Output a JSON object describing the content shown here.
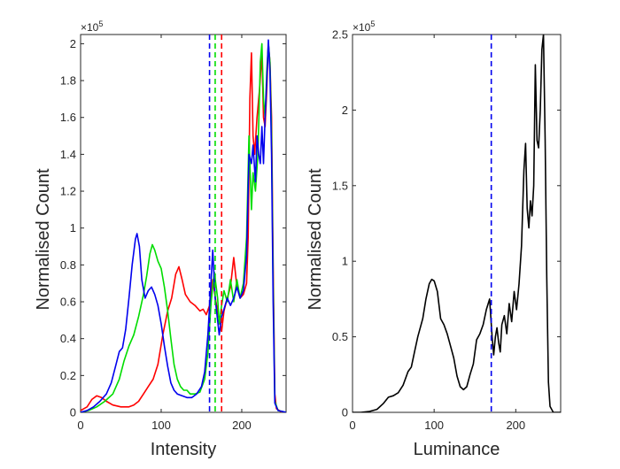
{
  "chart_data": [
    {
      "type": "line",
      "xlabel": "Intensity",
      "ylabel": "Normalised Count",
      "y_exponent_label": "×10",
      "y_exponent_power": "5",
      "xlim": [
        0,
        255
      ],
      "ylim": [
        0,
        2.05
      ],
      "xticks": [
        0,
        100,
        200
      ],
      "xtick_labels": [
        "0",
        "100",
        "200"
      ],
      "yticks": [
        0,
        0.2,
        0.4,
        0.6,
        0.8,
        1,
        1.2,
        1.4,
        1.6,
        1.8,
        2
      ],
      "ytick_labels": [
        "0",
        "0.2",
        "0.4",
        "0.6",
        "0.8",
        "1",
        "1.2",
        "1.4",
        "1.6",
        "1.8",
        "2"
      ],
      "grid": false,
      "series": [
        {
          "color": "#ff0000",
          "points": [
            [
              0,
              0.01
            ],
            [
              8,
              0.03
            ],
            [
              14,
              0.07
            ],
            [
              20,
              0.09
            ],
            [
              26,
              0.08
            ],
            [
              32,
              0.06
            ],
            [
              40,
              0.04
            ],
            [
              50,
              0.03
            ],
            [
              60,
              0.03
            ],
            [
              66,
              0.04
            ],
            [
              72,
              0.06
            ],
            [
              78,
              0.1
            ],
            [
              84,
              0.14
            ],
            [
              90,
              0.18
            ],
            [
              96,
              0.26
            ],
            [
              102,
              0.42
            ],
            [
              108,
              0.55
            ],
            [
              113,
              0.62
            ],
            [
              118,
              0.75
            ],
            [
              122,
              0.79
            ],
            [
              126,
              0.72
            ],
            [
              130,
              0.64
            ],
            [
              136,
              0.6
            ],
            [
              142,
              0.58
            ],
            [
              148,
              0.55
            ],
            [
              152,
              0.56
            ],
            [
              156,
              0.53
            ],
            [
              160,
              0.58
            ],
            [
              164,
              0.72
            ],
            [
              168,
              0.6
            ],
            [
              172,
              0.5
            ],
            [
              175,
              0.44
            ],
            [
              178,
              0.55
            ],
            [
              182,
              0.62
            ],
            [
              186,
              0.68
            ],
            [
              190,
              0.84
            ],
            [
              194,
              0.68
            ],
            [
              198,
              0.62
            ],
            [
              202,
              0.64
            ],
            [
              206,
              0.7
            ],
            [
              208,
              0.95
            ],
            [
              210,
              1.7
            ],
            [
              212,
              1.95
            ],
            [
              214,
              1.5
            ],
            [
              216,
              1.4
            ],
            [
              219,
              1.6
            ],
            [
              222,
              1.75
            ],
            [
              225,
              1.95
            ],
            [
              227,
              1.6
            ],
            [
              229,
              1.55
            ],
            [
              231,
              1.75
            ],
            [
              233,
              2.0
            ],
            [
              235,
              1.9
            ],
            [
              237,
              1.6
            ],
            [
              239,
              0.8
            ],
            [
              241,
              0.1
            ],
            [
              243,
              0.02
            ],
            [
              250,
              0.0
            ],
            [
              255,
              0.0
            ]
          ]
        },
        {
          "color": "#00dd00",
          "points": [
            [
              0,
              0.0
            ],
            [
              10,
              0.01
            ],
            [
              20,
              0.03
            ],
            [
              30,
              0.06
            ],
            [
              40,
              0.1
            ],
            [
              48,
              0.18
            ],
            [
              54,
              0.28
            ],
            [
              60,
              0.36
            ],
            [
              66,
              0.42
            ],
            [
              72,
              0.52
            ],
            [
              78,
              0.64
            ],
            [
              82,
              0.74
            ],
            [
              86,
              0.86
            ],
            [
              89,
              0.91
            ],
            [
              92,
              0.88
            ],
            [
              96,
              0.82
            ],
            [
              100,
              0.78
            ],
            [
              104,
              0.68
            ],
            [
              108,
              0.55
            ],
            [
              112,
              0.4
            ],
            [
              116,
              0.26
            ],
            [
              120,
              0.18
            ],
            [
              124,
              0.14
            ],
            [
              128,
              0.12
            ],
            [
              132,
              0.12
            ],
            [
              136,
              0.1
            ],
            [
              142,
              0.1
            ],
            [
              148,
              0.11
            ],
            [
              154,
              0.18
            ],
            [
              158,
              0.32
            ],
            [
              162,
              0.6
            ],
            [
              166,
              0.76
            ],
            [
              170,
              0.62
            ],
            [
              172,
              0.48
            ],
            [
              175,
              0.58
            ],
            [
              178,
              0.66
            ],
            [
              182,
              0.6
            ],
            [
              186,
              0.72
            ],
            [
              190,
              0.6
            ],
            [
              194,
              0.72
            ],
            [
              198,
              0.62
            ],
            [
              202,
              0.7
            ],
            [
              206,
              0.95
            ],
            [
              209,
              1.5
            ],
            [
              212,
              1.1
            ],
            [
              214,
              1.3
            ],
            [
              217,
              1.2
            ],
            [
              220,
              1.4
            ],
            [
              223,
              1.9
            ],
            [
              225,
              2.0
            ],
            [
              227,
              1.7
            ],
            [
              229,
              1.6
            ],
            [
              231,
              1.85
            ],
            [
              233,
              2.0
            ],
            [
              235,
              1.9
            ],
            [
              237,
              1.5
            ],
            [
              239,
              0.7
            ],
            [
              241,
              0.06
            ],
            [
              245,
              0.01
            ],
            [
              255,
              0.0
            ]
          ]
        },
        {
          "color": "#0000ee",
          "points": [
            [
              0,
              0.0
            ],
            [
              8,
              0.01
            ],
            [
              16,
              0.03
            ],
            [
              24,
              0.06
            ],
            [
              32,
              0.1
            ],
            [
              38,
              0.16
            ],
            [
              44,
              0.26
            ],
            [
              48,
              0.33
            ],
            [
              52,
              0.35
            ],
            [
              56,
              0.45
            ],
            [
              60,
              0.62
            ],
            [
              64,
              0.8
            ],
            [
              68,
              0.94
            ],
            [
              70,
              0.97
            ],
            [
              73,
              0.9
            ],
            [
              76,
              0.72
            ],
            [
              80,
              0.62
            ],
            [
              84,
              0.66
            ],
            [
              88,
              0.68
            ],
            [
              92,
              0.64
            ],
            [
              96,
              0.58
            ],
            [
              100,
              0.48
            ],
            [
              104,
              0.36
            ],
            [
              108,
              0.25
            ],
            [
              112,
              0.16
            ],
            [
              116,
              0.12
            ],
            [
              120,
              0.1
            ],
            [
              126,
              0.09
            ],
            [
              132,
              0.08
            ],
            [
              138,
              0.08
            ],
            [
              144,
              0.1
            ],
            [
              150,
              0.14
            ],
            [
              154,
              0.22
            ],
            [
              158,
              0.42
            ],
            [
              162,
              0.72
            ],
            [
              164,
              0.88
            ],
            [
              167,
              0.62
            ],
            [
              170,
              0.5
            ],
            [
              172,
              0.42
            ],
            [
              175,
              0.52
            ],
            [
              178,
              0.56
            ],
            [
              182,
              0.62
            ],
            [
              186,
              0.58
            ],
            [
              190,
              0.62
            ],
            [
              194,
              0.68
            ],
            [
              198,
              0.62
            ],
            [
              202,
              0.66
            ],
            [
              206,
              0.85
            ],
            [
              209,
              1.4
            ],
            [
              212,
              1.35
            ],
            [
              214,
              1.45
            ],
            [
              217,
              1.25
            ],
            [
              219,
              1.5
            ],
            [
              221,
              1.4
            ],
            [
              223,
              1.35
            ],
            [
              225,
              1.55
            ],
            [
              227,
              1.35
            ],
            [
              229,
              1.6
            ],
            [
              231,
              1.8
            ],
            [
              233,
              2.02
            ],
            [
              235,
              1.85
            ],
            [
              237,
              1.4
            ],
            [
              239,
              0.6
            ],
            [
              241,
              0.05
            ],
            [
              245,
              0.01
            ],
            [
              255,
              0.0
            ]
          ]
        }
      ],
      "vlines": [
        {
          "x": 160,
          "color": "#0000ee"
        },
        {
          "x": 167,
          "color": "#00dd00"
        },
        {
          "x": 175,
          "color": "#ff0000"
        }
      ]
    },
    {
      "type": "line",
      "xlabel": "Luminance",
      "ylabel": "Normalised Count",
      "y_exponent_label": "×10",
      "y_exponent_power": "5",
      "xlim": [
        0,
        255
      ],
      "ylim": [
        0,
        2.5
      ],
      "xticks": [
        0,
        100,
        200
      ],
      "xtick_labels": [
        "0",
        "100",
        "200"
      ],
      "yticks": [
        0,
        0.5,
        1,
        1.5,
        2,
        2.5
      ],
      "ytick_labels": [
        "0",
        "0.5",
        "1",
        "1.5",
        "2",
        "2.5"
      ],
      "grid": false,
      "series": [
        {
          "color": "#000000",
          "points": [
            [
              0,
              0.0
            ],
            [
              10,
              0.0
            ],
            [
              20,
              0.005
            ],
            [
              30,
              0.02
            ],
            [
              38,
              0.06
            ],
            [
              44,
              0.1
            ],
            [
              50,
              0.11
            ],
            [
              56,
              0.13
            ],
            [
              62,
              0.18
            ],
            [
              68,
              0.27
            ],
            [
              72,
              0.3
            ],
            [
              76,
              0.4
            ],
            [
              80,
              0.5
            ],
            [
              86,
              0.62
            ],
            [
              90,
              0.75
            ],
            [
              94,
              0.85
            ],
            [
              97,
              0.88
            ],
            [
              100,
              0.87
            ],
            [
              104,
              0.8
            ],
            [
              108,
              0.62
            ],
            [
              112,
              0.58
            ],
            [
              116,
              0.52
            ],
            [
              120,
              0.44
            ],
            [
              124,
              0.36
            ],
            [
              128,
              0.24
            ],
            [
              132,
              0.17
            ],
            [
              136,
              0.15
            ],
            [
              140,
              0.17
            ],
            [
              144,
              0.25
            ],
            [
              148,
              0.32
            ],
            [
              152,
              0.48
            ],
            [
              156,
              0.52
            ],
            [
              160,
              0.58
            ],
            [
              164,
              0.68
            ],
            [
              168,
              0.75
            ],
            [
              171,
              0.5
            ],
            [
              173,
              0.38
            ],
            [
              175,
              0.5
            ],
            [
              177,
              0.56
            ],
            [
              179,
              0.46
            ],
            [
              181,
              0.4
            ],
            [
              183,
              0.58
            ],
            [
              186,
              0.64
            ],
            [
              189,
              0.52
            ],
            [
              192,
              0.72
            ],
            [
              195,
              0.6
            ],
            [
              198,
              0.8
            ],
            [
              201,
              0.68
            ],
            [
              204,
              0.85
            ],
            [
              207,
              1.1
            ],
            [
              210,
              1.6
            ],
            [
              212,
              1.78
            ],
            [
              214,
              1.35
            ],
            [
              216,
              1.22
            ],
            [
              218,
              1.4
            ],
            [
              220,
              1.3
            ],
            [
              222,
              1.5
            ],
            [
              224,
              2.3
            ],
            [
              226,
              1.8
            ],
            [
              228,
              1.75
            ],
            [
              230,
              2.0
            ],
            [
              232,
              2.4
            ],
            [
              234,
              2.5
            ],
            [
              236,
              1.8
            ],
            [
              238,
              0.9
            ],
            [
              240,
              0.2
            ],
            [
              242,
              0.04
            ],
            [
              246,
              0.0
            ],
            [
              255,
              0.0
            ]
          ]
        }
      ],
      "vlines": [
        {
          "x": 170,
          "color": "#0000ee"
        }
      ]
    }
  ]
}
